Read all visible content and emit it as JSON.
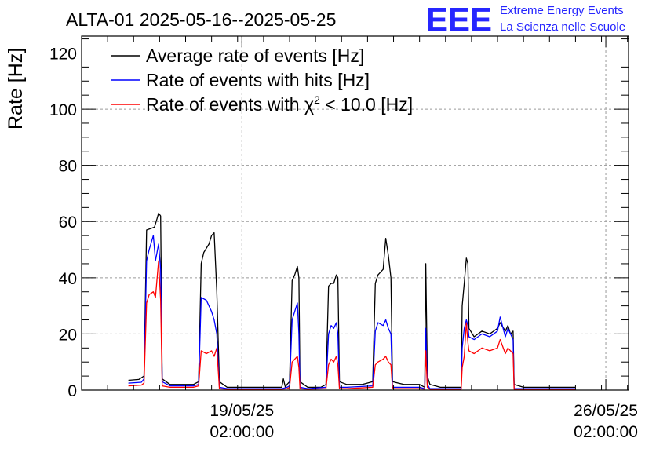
{
  "chart_data": {
    "type": "line",
    "title": "ALTA-01 2025-05-16--2025-05-25",
    "xlabel": "",
    "ylabel": "Rate [Hz]",
    "ylim": [
      0,
      126
    ],
    "yticks": [
      0,
      20,
      40,
      60,
      80,
      100,
      120
    ],
    "x_unit": "days since 2025-05-16 00:00",
    "xlim": [
      0.0,
      10.52
    ],
    "xticks": [
      {
        "x": 3.083,
        "line1": "19/05/25",
        "line2": "02:00:00"
      },
      {
        "x": 10.083,
        "line1": "26/05/25",
        "line2": "02:00:00"
      }
    ],
    "grid": true,
    "legend_position": "top-left",
    "logo": {
      "mark": "EEE",
      "line1": "Extreme Energy Events",
      "line2": "La Scienza nelle Scuole"
    },
    "legend": {
      "avg": "Average rate of events [Hz]",
      "hits": "Rate of events with hits [Hz]",
      "chi_prefix": "Rate of events with ",
      "chi_symbol": "χ",
      "chi_sup": "2",
      "chi_suffix": " < 10.0 [Hz]"
    },
    "series": [
      {
        "name": "Average rate of events [Hz]",
        "color": "#000000",
        "points": [
          [
            0.9,
            3.5
          ],
          [
            1.1,
            3.8
          ],
          [
            1.2,
            5.0
          ],
          [
            1.25,
            57
          ],
          [
            1.4,
            58
          ],
          [
            1.45,
            61
          ],
          [
            1.48,
            63
          ],
          [
            1.52,
            62
          ],
          [
            1.55,
            4
          ],
          [
            1.7,
            2
          ],
          [
            2.15,
            2
          ],
          [
            2.25,
            3
          ],
          [
            2.3,
            45
          ],
          [
            2.35,
            49
          ],
          [
            2.45,
            52
          ],
          [
            2.5,
            55
          ],
          [
            2.55,
            56
          ],
          [
            2.6,
            35
          ],
          [
            2.65,
            3
          ],
          [
            2.8,
            1
          ],
          [
            3.85,
            1
          ],
          [
            3.88,
            4
          ],
          [
            3.92,
            1
          ],
          [
            3.95,
            2
          ],
          [
            4.0,
            3
          ],
          [
            4.05,
            39
          ],
          [
            4.1,
            41
          ],
          [
            4.15,
            44
          ],
          [
            4.18,
            40
          ],
          [
            4.2,
            3
          ],
          [
            4.35,
            1
          ],
          [
            4.45,
            1
          ],
          [
            4.6,
            1
          ],
          [
            4.7,
            2
          ],
          [
            4.75,
            37
          ],
          [
            4.8,
            38
          ],
          [
            4.85,
            38
          ],
          [
            4.9,
            41
          ],
          [
            4.93,
            40
          ],
          [
            4.96,
            3
          ],
          [
            5.1,
            2
          ],
          [
            5.4,
            2
          ],
          [
            5.6,
            3
          ],
          [
            5.65,
            38
          ],
          [
            5.7,
            41
          ],
          [
            5.8,
            43
          ],
          [
            5.85,
            54
          ],
          [
            5.9,
            48
          ],
          [
            5.95,
            40
          ],
          [
            5.98,
            3
          ],
          [
            6.2,
            2
          ],
          [
            6.5,
            2
          ],
          [
            6.6,
            1
          ],
          [
            6.62,
            45
          ],
          [
            6.65,
            5
          ],
          [
            6.7,
            2
          ],
          [
            6.9,
            1
          ],
          [
            7.3,
            1
          ],
          [
            7.32,
            30
          ],
          [
            7.36,
            38
          ],
          [
            7.4,
            47
          ],
          [
            7.43,
            45
          ],
          [
            7.45,
            22
          ],
          [
            7.55,
            19
          ],
          [
            7.7,
            21
          ],
          [
            7.85,
            20
          ],
          [
            8.0,
            22
          ],
          [
            8.05,
            24
          ],
          [
            8.15,
            21
          ],
          [
            8.2,
            23
          ],
          [
            8.25,
            20
          ],
          [
            8.3,
            21
          ],
          [
            8.32,
            2
          ],
          [
            8.5,
            1
          ],
          [
            9.5,
            1
          ]
        ]
      },
      {
        "name": "Rate of events with hits [Hz]",
        "color": "#0000ff",
        "points": [
          [
            0.9,
            2.5
          ],
          [
            1.15,
            2.8
          ],
          [
            1.2,
            4.0
          ],
          [
            1.25,
            46
          ],
          [
            1.3,
            50
          ],
          [
            1.38,
            55
          ],
          [
            1.42,
            46
          ],
          [
            1.48,
            52
          ],
          [
            1.52,
            43
          ],
          [
            1.55,
            3
          ],
          [
            1.7,
            1.5
          ],
          [
            2.15,
            1.5
          ],
          [
            2.25,
            2
          ],
          [
            2.3,
            33
          ],
          [
            2.4,
            32
          ],
          [
            2.5,
            28
          ],
          [
            2.55,
            25
          ],
          [
            2.6,
            20
          ],
          [
            2.65,
            1
          ],
          [
            2.8,
            0.5
          ],
          [
            3.85,
            0.5
          ],
          [
            3.95,
            1
          ],
          [
            4.0,
            1.5
          ],
          [
            4.05,
            25
          ],
          [
            4.1,
            28
          ],
          [
            4.15,
            31
          ],
          [
            4.18,
            20
          ],
          [
            4.2,
            1
          ],
          [
            4.35,
            0.5
          ],
          [
            4.7,
            1
          ],
          [
            4.75,
            20
          ],
          [
            4.8,
            23
          ],
          [
            4.85,
            22
          ],
          [
            4.9,
            24
          ],
          [
            4.93,
            20
          ],
          [
            4.96,
            1
          ],
          [
            5.1,
            1
          ],
          [
            5.6,
            1.5
          ],
          [
            5.65,
            21
          ],
          [
            5.7,
            24
          ],
          [
            5.8,
            23
          ],
          [
            5.85,
            25
          ],
          [
            5.9,
            22
          ],
          [
            5.95,
            20
          ],
          [
            5.98,
            1
          ],
          [
            6.2,
            1
          ],
          [
            6.5,
            1
          ],
          [
            6.6,
            0.5
          ],
          [
            6.62,
            22
          ],
          [
            6.65,
            2
          ],
          [
            6.7,
            0.5
          ],
          [
            7.3,
            0.5
          ],
          [
            7.32,
            15
          ],
          [
            7.36,
            22
          ],
          [
            7.4,
            25
          ],
          [
            7.43,
            23
          ],
          [
            7.45,
            19
          ],
          [
            7.55,
            18
          ],
          [
            7.7,
            20
          ],
          [
            7.85,
            19
          ],
          [
            8.0,
            21
          ],
          [
            8.05,
            26
          ],
          [
            8.15,
            19
          ],
          [
            8.2,
            22
          ],
          [
            8.25,
            20
          ],
          [
            8.3,
            18
          ],
          [
            8.32,
            0.5
          ],
          [
            9.5,
            0.5
          ]
        ]
      },
      {
        "name": "Rate of events with χ2 < 10.0 [Hz]",
        "color": "#ff0000",
        "points": [
          [
            0.9,
            1.5
          ],
          [
            1.15,
            1.8
          ],
          [
            1.2,
            2.5
          ],
          [
            1.25,
            31
          ],
          [
            1.3,
            34
          ],
          [
            1.38,
            35
          ],
          [
            1.42,
            33
          ],
          [
            1.48,
            46
          ],
          [
            1.52,
            32
          ],
          [
            1.55,
            1.5
          ],
          [
            1.7,
            1
          ],
          [
            2.15,
            1
          ],
          [
            2.25,
            1.5
          ],
          [
            2.3,
            14
          ],
          [
            2.4,
            13
          ],
          [
            2.5,
            14
          ],
          [
            2.55,
            12
          ],
          [
            2.6,
            15
          ],
          [
            2.65,
            0.5
          ],
          [
            2.8,
            0.3
          ],
          [
            3.85,
            0.3
          ],
          [
            3.95,
            0.5
          ],
          [
            4.0,
            1
          ],
          [
            4.05,
            10
          ],
          [
            4.1,
            11
          ],
          [
            4.15,
            12
          ],
          [
            4.18,
            8
          ],
          [
            4.2,
            0.5
          ],
          [
            4.35,
            0.3
          ],
          [
            4.7,
            0.5
          ],
          [
            4.75,
            9
          ],
          [
            4.8,
            11
          ],
          [
            4.85,
            10
          ],
          [
            4.9,
            12
          ],
          [
            4.93,
            9
          ],
          [
            4.96,
            0.5
          ],
          [
            5.1,
            0.5
          ],
          [
            5.6,
            1
          ],
          [
            5.65,
            9
          ],
          [
            5.7,
            10
          ],
          [
            5.8,
            11
          ],
          [
            5.85,
            12
          ],
          [
            5.9,
            10
          ],
          [
            5.95,
            9
          ],
          [
            5.98,
            0.5
          ],
          [
            6.2,
            0.5
          ],
          [
            6.5,
            0.5
          ],
          [
            6.6,
            0.3
          ],
          [
            6.62,
            14
          ],
          [
            6.65,
            1
          ],
          [
            6.7,
            0.3
          ],
          [
            7.3,
            0.3
          ],
          [
            7.32,
            8
          ],
          [
            7.36,
            12
          ],
          [
            7.4,
            24
          ],
          [
            7.43,
            17
          ],
          [
            7.45,
            14
          ],
          [
            7.55,
            13
          ],
          [
            7.7,
            15
          ],
          [
            7.85,
            14
          ],
          [
            8.0,
            15
          ],
          [
            8.05,
            18
          ],
          [
            8.15,
            13
          ],
          [
            8.2,
            15
          ],
          [
            8.25,
            14
          ],
          [
            8.3,
            13
          ],
          [
            8.32,
            0.3
          ],
          [
            9.5,
            0.3
          ]
        ]
      }
    ]
  }
}
